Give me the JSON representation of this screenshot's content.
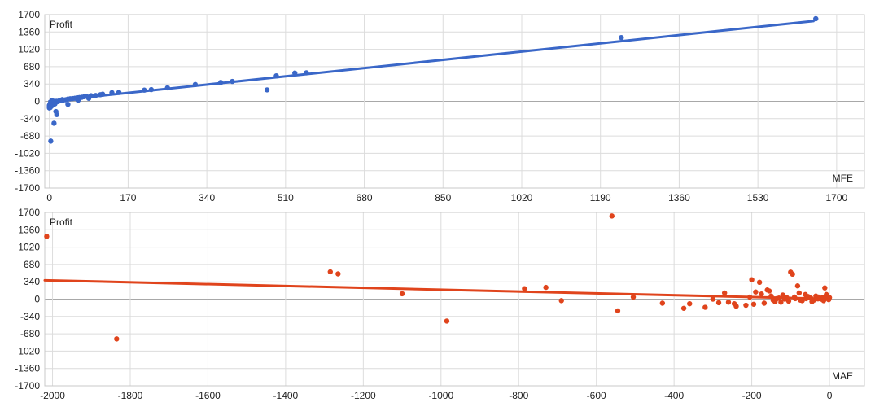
{
  "chart_data": [
    {
      "type": "scatter",
      "ylabel": "Profit",
      "xlabel": "MFE",
      "xlim": [
        -10,
        1760
      ],
      "ylim": [
        -1700,
        1700
      ],
      "x_ticks": [
        0,
        170,
        340,
        510,
        680,
        850,
        1020,
        1190,
        1360,
        1530,
        1700
      ],
      "y_ticks": [
        1700,
        1360,
        1020,
        680,
        340,
        0,
        -340,
        -680,
        -1020,
        -1360,
        -1700
      ],
      "grid": true,
      "color": "#3a67c8",
      "trendline": {
        "from": [
          0,
          5
        ],
        "to": [
          1650,
          1575
        ]
      },
      "points": [
        [
          1655,
          1620
        ],
        [
          1235,
          1250
        ],
        [
          555,
          560
        ],
        [
          530,
          555
        ],
        [
          490,
          500
        ],
        [
          470,
          225
        ],
        [
          395,
          390
        ],
        [
          370,
          370
        ],
        [
          315,
          330
        ],
        [
          255,
          265
        ],
        [
          220,
          230
        ],
        [
          205,
          220
        ],
        [
          150,
          175
        ],
        [
          135,
          170
        ],
        [
          115,
          140
        ],
        [
          110,
          130
        ],
        [
          100,
          115
        ],
        [
          90,
          110
        ],
        [
          80,
          100
        ],
        [
          75,
          90
        ],
        [
          70,
          80
        ],
        [
          65,
          75
        ],
        [
          60,
          70
        ],
        [
          55,
          60
        ],
        [
          50,
          55
        ],
        [
          45,
          50
        ],
        [
          40,
          45
        ],
        [
          35,
          30
        ],
        [
          30,
          25
        ],
        [
          28,
          35
        ],
        [
          25,
          15
        ],
        [
          22,
          10
        ],
        [
          20,
          5
        ],
        [
          18,
          -5
        ],
        [
          15,
          0
        ],
        [
          12,
          -10
        ],
        [
          10,
          -20
        ],
        [
          8,
          5
        ],
        [
          5,
          10
        ],
        [
          3,
          -15
        ],
        [
          2,
          -40
        ],
        [
          1,
          -60
        ],
        [
          0,
          -80
        ],
        [
          0,
          -100
        ],
        [
          0,
          -130
        ],
        [
          2,
          -120
        ],
        [
          5,
          -90
        ],
        [
          8,
          -70
        ],
        [
          12,
          -50
        ],
        [
          14,
          -200
        ],
        [
          16,
          -260
        ],
        [
          10,
          -430
        ],
        [
          3,
          -780
        ],
        [
          40,
          -60
        ],
        [
          62,
          20
        ],
        [
          85,
          60
        ]
      ]
    },
    {
      "type": "scatter",
      "ylabel": "Profit",
      "xlabel": "MAE",
      "xlim": [
        -2020,
        90
      ],
      "ylim": [
        -1700,
        1700
      ],
      "x_ticks": [
        -2000,
        -1800,
        -1600,
        -1400,
        -1200,
        -1000,
        -800,
        -600,
        -400,
        -200,
        0
      ],
      "y_ticks": [
        1700,
        1360,
        1020,
        680,
        340,
        0,
        -340,
        -680,
        -1020,
        -1360,
        -1700
      ],
      "grid": true,
      "color": "#e0441c",
      "trendline": {
        "from": [
          -2020,
          370
        ],
        "to": [
          0,
          5
        ]
      },
      "points": [
        [
          -2015,
          1230
        ],
        [
          -1835,
          -780
        ],
        [
          -1285,
          535
        ],
        [
          -1265,
          495
        ],
        [
          -1100,
          105
        ],
        [
          -985,
          -430
        ],
        [
          -785,
          205
        ],
        [
          -730,
          230
        ],
        [
          -690,
          -30
        ],
        [
          -560,
          1630
        ],
        [
          -545,
          -230
        ],
        [
          -505,
          40
        ],
        [
          -430,
          -80
        ],
        [
          -375,
          -180
        ],
        [
          -360,
          -90
        ],
        [
          -320,
          -160
        ],
        [
          -300,
          0
        ],
        [
          -285,
          -70
        ],
        [
          -270,
          120
        ],
        [
          -260,
          -60
        ],
        [
          -245,
          -90
        ],
        [
          -240,
          -140
        ],
        [
          -215,
          -120
        ],
        [
          -205,
          40
        ],
        [
          -200,
          380
        ],
        [
          -195,
          -100
        ],
        [
          -190,
          140
        ],
        [
          -180,
          330
        ],
        [
          -175,
          100
        ],
        [
          -168,
          -80
        ],
        [
          -160,
          180
        ],
        [
          -155,
          160
        ],
        [
          -150,
          60
        ],
        [
          -140,
          -50
        ],
        [
          -130,
          20
        ],
        [
          -120,
          80
        ],
        [
          -110,
          30
        ],
        [
          -100,
          530
        ],
        [
          -95,
          490
        ],
        [
          -88,
          10
        ],
        [
          -82,
          260
        ],
        [
          -78,
          120
        ],
        [
          -70,
          -30
        ],
        [
          -62,
          90
        ],
        [
          -55,
          50
        ],
        [
          -48,
          20
        ],
        [
          -40,
          -20
        ],
        [
          -35,
          60
        ],
        [
          -28,
          40
        ],
        [
          -22,
          0
        ],
        [
          -18,
          30
        ],
        [
          -12,
          220
        ],
        [
          -8,
          90
        ],
        [
          -5,
          10
        ],
        [
          -2,
          -10
        ],
        [
          0,
          30
        ],
        [
          -45,
          -50
        ],
        [
          -60,
          10
        ],
        [
          -75,
          -20
        ],
        [
          -90,
          40
        ],
        [
          -105,
          -40
        ],
        [
          -115,
          0
        ],
        [
          -125,
          -60
        ],
        [
          -135,
          10
        ],
        [
          -145,
          -20
        ],
        [
          -30,
          5
        ],
        [
          -15,
          -30
        ],
        [
          -10,
          50
        ]
      ]
    }
  ]
}
